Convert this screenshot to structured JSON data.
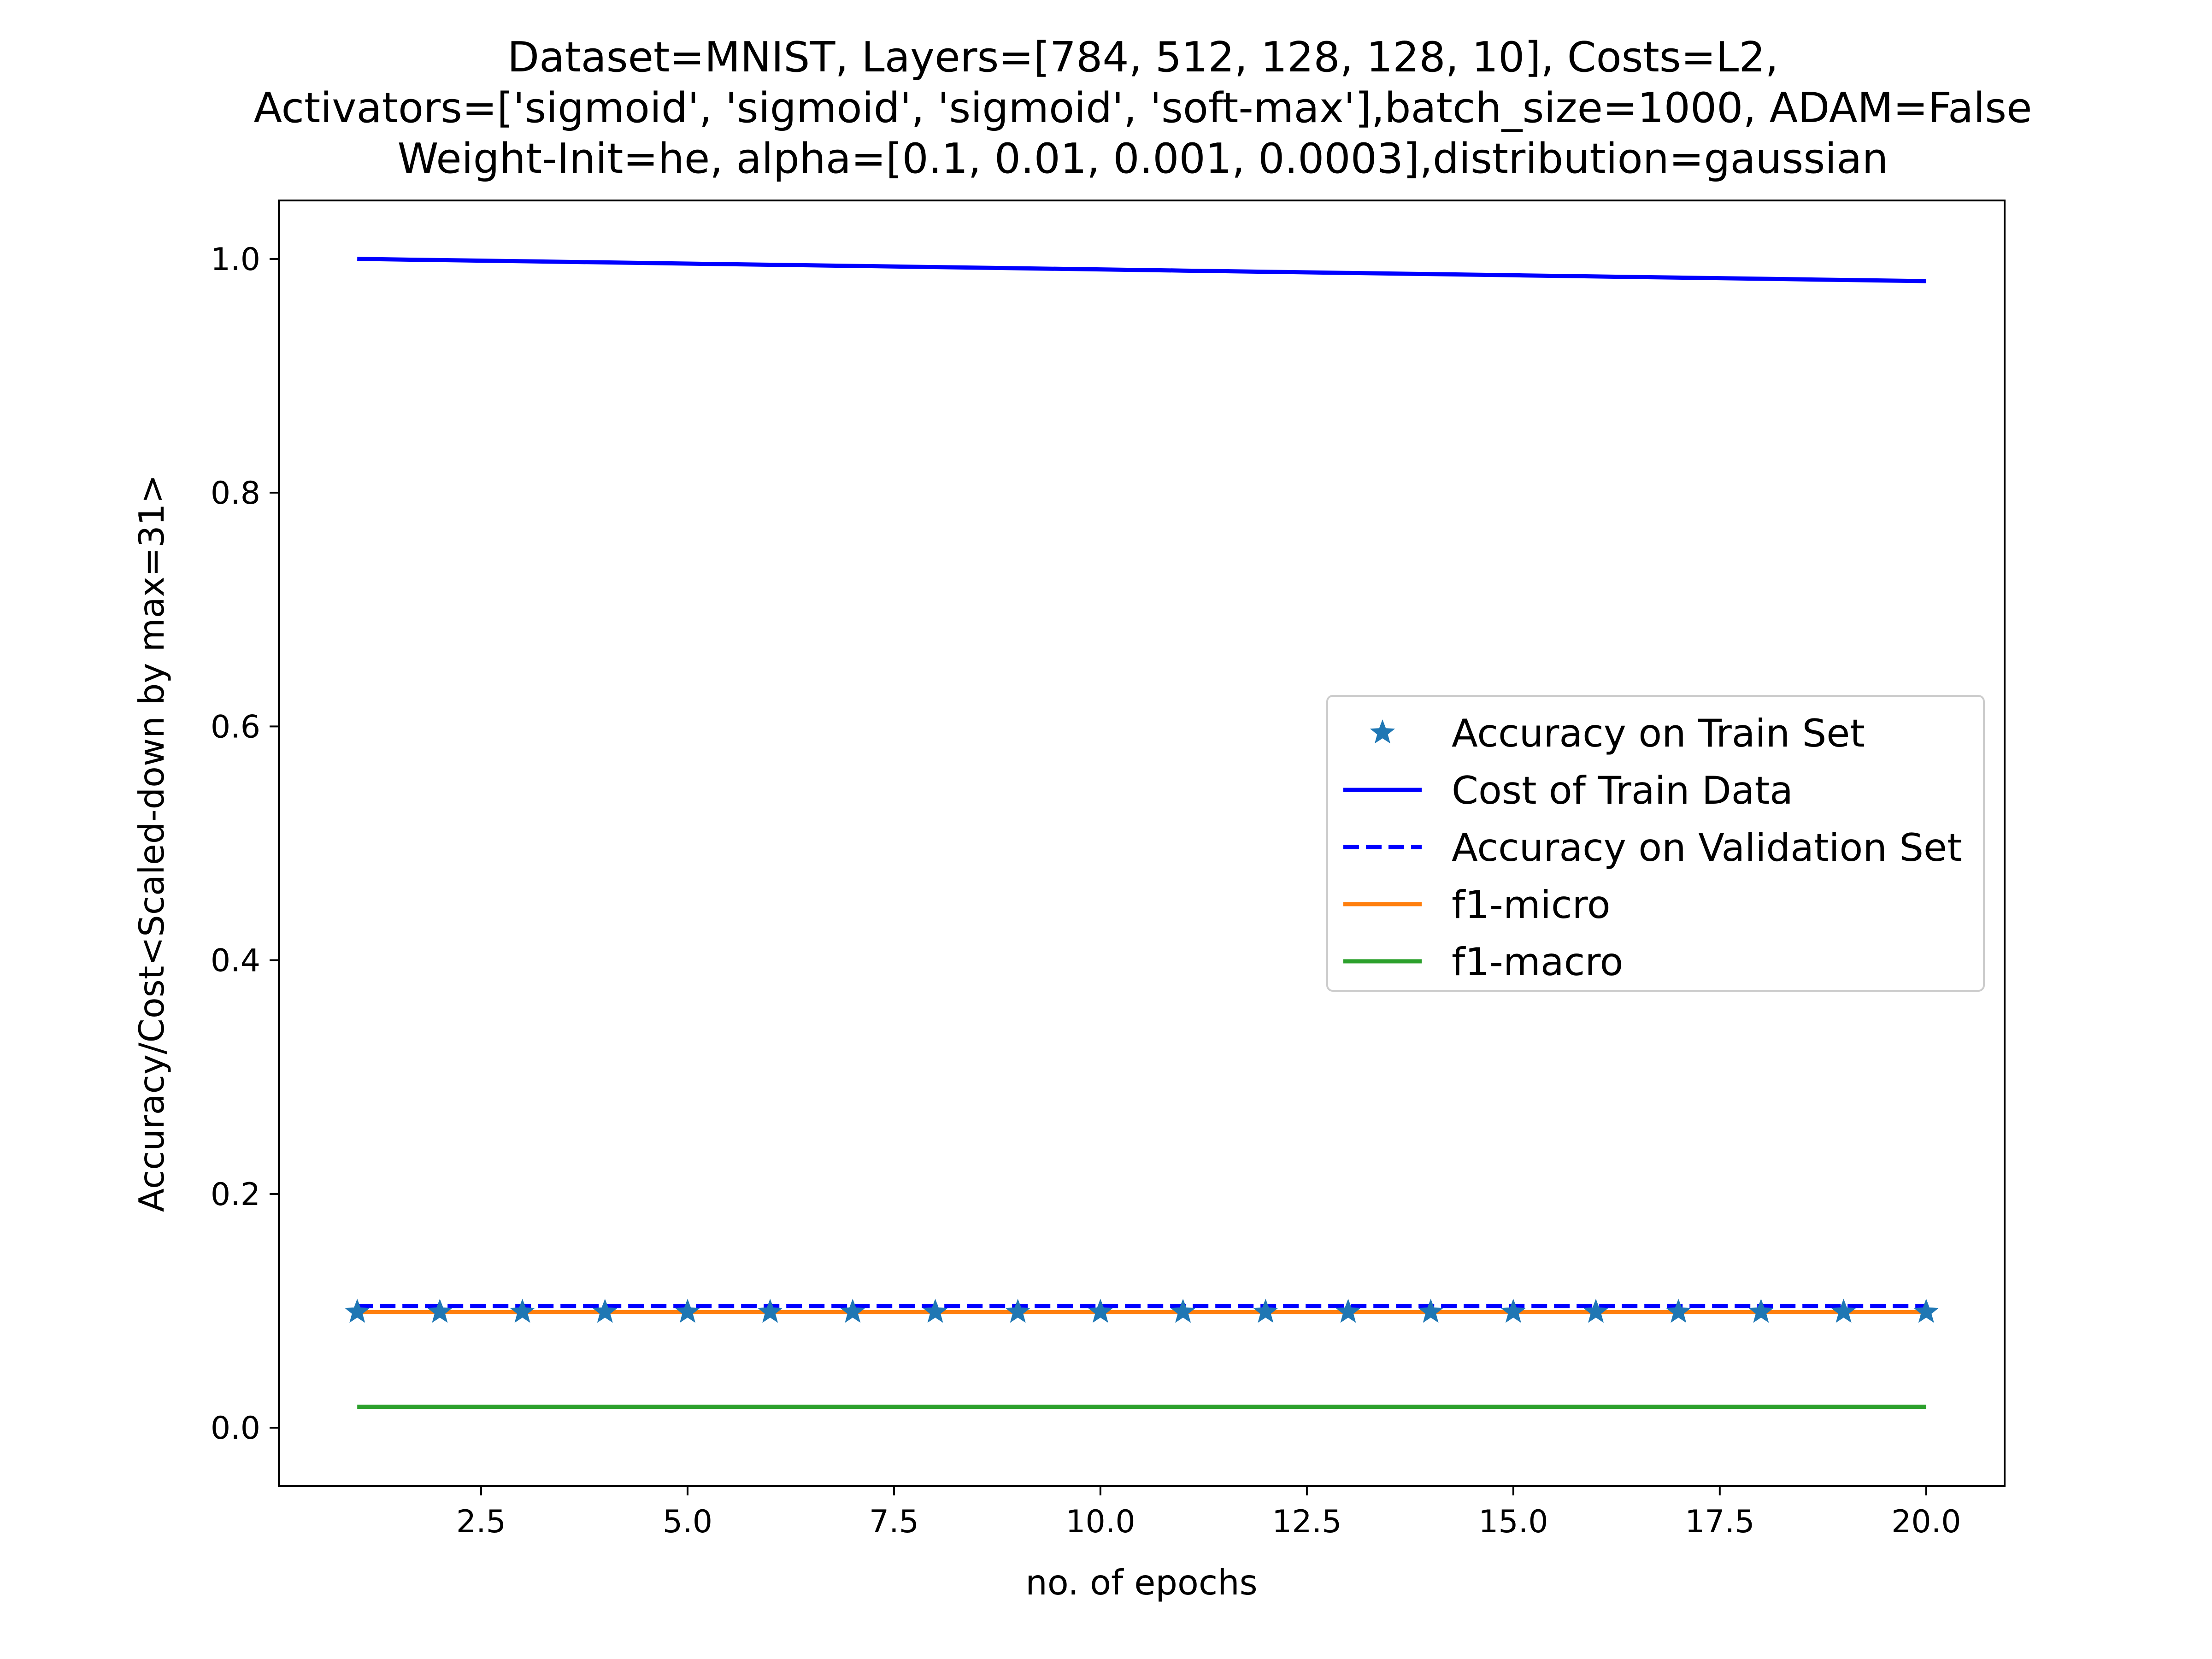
{
  "chart_data": {
    "type": "line",
    "title_lines": [
      "Dataset=MNIST, Layers=[784, 512, 128, 128, 10], Costs=L2,",
      "Activators=['sigmoid', 'sigmoid', 'sigmoid', 'soft-max'],batch_size=1000, ADAM=False",
      "Weight-Init=he, alpha=[0.1, 0.01, 0.001, 0.0003],distribution=gaussian"
    ],
    "xlabel": "no. of epochs",
    "ylabel": "Accuracy/Cost<Scaled-down by max=31>",
    "xlim": [
      0.05,
      20.95
    ],
    "ylim": [
      -0.05,
      1.05
    ],
    "x_ticks": [
      {
        "value": 2.5,
        "label": "2.5"
      },
      {
        "value": 5.0,
        "label": "5.0"
      },
      {
        "value": 7.5,
        "label": "7.5"
      },
      {
        "value": 10.0,
        "label": "10.0"
      },
      {
        "value": 12.5,
        "label": "12.5"
      },
      {
        "value": 15.0,
        "label": "15.0"
      },
      {
        "value": 17.5,
        "label": "17.5"
      },
      {
        "value": 20.0,
        "label": "20.0"
      }
    ],
    "y_ticks": [
      {
        "value": 0.0,
        "label": "0.0"
      },
      {
        "value": 0.2,
        "label": "0.2"
      },
      {
        "value": 0.4,
        "label": "0.4"
      },
      {
        "value": 0.6,
        "label": "0.6"
      },
      {
        "value": 0.8,
        "label": "0.8"
      },
      {
        "value": 1.0,
        "label": "1.0"
      }
    ],
    "grid": false,
    "legend_position": "center-right",
    "x": [
      1,
      2,
      3,
      4,
      5,
      6,
      7,
      8,
      9,
      10,
      11,
      12,
      13,
      14,
      15,
      16,
      17,
      18,
      19,
      20
    ],
    "series": [
      {
        "name": "Accuracy on Train Set",
        "style": "star-markers",
        "color": "#1f77b4",
        "values": [
          0.099,
          0.099,
          0.099,
          0.099,
          0.099,
          0.099,
          0.099,
          0.099,
          0.099,
          0.099,
          0.099,
          0.099,
          0.099,
          0.099,
          0.099,
          0.099,
          0.099,
          0.099,
          0.099,
          0.099
        ]
      },
      {
        "name": "Cost of Train Data",
        "style": "solid",
        "color": "#0000ff",
        "values": [
          1.0,
          0.999,
          0.998,
          0.997,
          0.996,
          0.995,
          0.994,
          0.993,
          0.992,
          0.991,
          0.99,
          0.989,
          0.988,
          0.987,
          0.986,
          0.985,
          0.984,
          0.983,
          0.982,
          0.981
        ]
      },
      {
        "name": "Accuracy on Validation Set",
        "style": "dashed",
        "color": "#0000ff",
        "values": [
          0.104,
          0.104,
          0.104,
          0.104,
          0.104,
          0.104,
          0.104,
          0.104,
          0.104,
          0.104,
          0.104,
          0.104,
          0.104,
          0.104,
          0.104,
          0.104,
          0.104,
          0.104,
          0.104,
          0.104
        ]
      },
      {
        "name": "f1-micro",
        "style": "solid",
        "color": "#ff7f0e",
        "values": [
          0.099,
          0.099,
          0.099,
          0.099,
          0.099,
          0.099,
          0.099,
          0.099,
          0.099,
          0.099,
          0.099,
          0.099,
          0.099,
          0.099,
          0.099,
          0.099,
          0.099,
          0.099,
          0.099,
          0.099
        ]
      },
      {
        "name": "f1-macro",
        "style": "solid",
        "color": "#2ca02c",
        "values": [
          0.018,
          0.018,
          0.018,
          0.018,
          0.018,
          0.018,
          0.018,
          0.018,
          0.018,
          0.018,
          0.018,
          0.018,
          0.018,
          0.018,
          0.018,
          0.018,
          0.018,
          0.018,
          0.018,
          0.018
        ]
      }
    ]
  }
}
